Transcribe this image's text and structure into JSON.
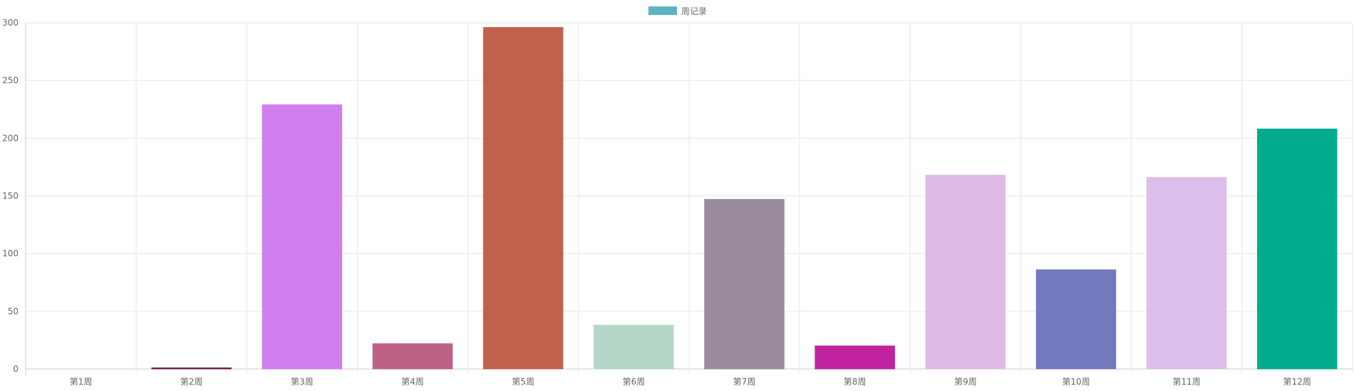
{
  "chart_data": {
    "type": "bar",
    "title": "",
    "xlabel": "",
    "ylabel": "",
    "legend": {
      "position": "top",
      "color": "#5bb5c0"
    },
    "grid": true,
    "ylim": [
      0,
      300
    ],
    "yticks": [
      0,
      50,
      100,
      150,
      200,
      250,
      300
    ],
    "categories": [
      "第1周",
      "第2周",
      "第3周",
      "第4周",
      "第5周",
      "第6周",
      "第7周",
      "第8周",
      "第9周",
      "第10周",
      "第11周",
      "第12周"
    ],
    "series": [
      {
        "name": "周记录",
        "values": [
          0,
          1,
          229,
          22,
          296,
          38,
          147,
          20,
          168,
          86,
          166,
          208
        ],
        "colors": [
          "#b8a0a0",
          "#6b1a4a",
          "#cf7fee",
          "#bd6186",
          "#c0614e",
          "#b5d6c6",
          "#9b8b9f",
          "#c122a0",
          "#debbe4",
          "#7479be",
          "#ddbde9",
          "#00ac8c"
        ]
      }
    ]
  }
}
